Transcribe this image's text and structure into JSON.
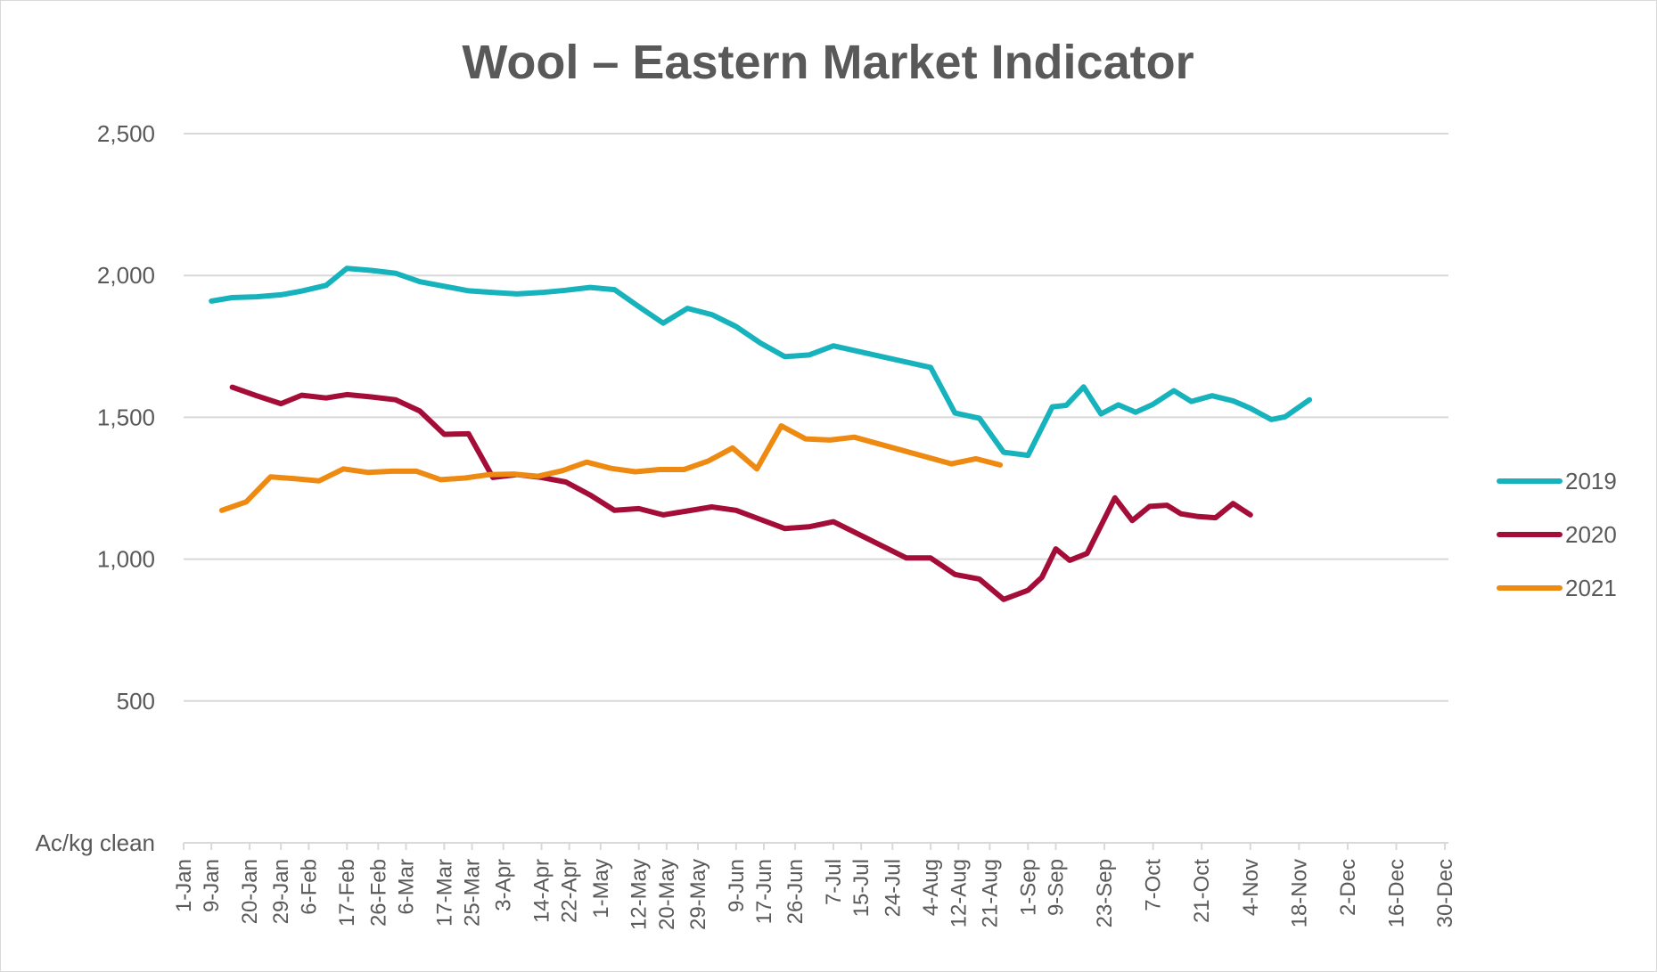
{
  "chart_data": {
    "type": "line",
    "title": "Wool – Eastern Market Indicator",
    "ylabel": "Ac/kg clean",
    "xlabel": "",
    "ylim": [
      0,
      2500
    ],
    "yticks": [
      {
        "value": 500,
        "label": "500"
      },
      {
        "value": 1000,
        "label": "1,000"
      },
      {
        "value": 1500,
        "label": "1,500"
      },
      {
        "value": 2000,
        "label": "2,000"
      },
      {
        "value": 2500,
        "label": "2,500"
      }
    ],
    "xlim": [
      1,
      365
    ],
    "xticks": [
      {
        "day": 1,
        "label": "1-Jan"
      },
      {
        "day": 9,
        "label": "9-Jan"
      },
      {
        "day": 20,
        "label": "20-Jan"
      },
      {
        "day": 29,
        "label": "29-Jan"
      },
      {
        "day": 37,
        "label": "6-Feb"
      },
      {
        "day": 48,
        "label": "17-Feb"
      },
      {
        "day": 57,
        "label": "26-Feb"
      },
      {
        "day": 65,
        "label": "6-Mar"
      },
      {
        "day": 76,
        "label": "17-Mar"
      },
      {
        "day": 84,
        "label": "25-Mar"
      },
      {
        "day": 93,
        "label": "3-Apr"
      },
      {
        "day": 104,
        "label": "14-Apr"
      },
      {
        "day": 112,
        "label": "22-Apr"
      },
      {
        "day": 121,
        "label": "1-May"
      },
      {
        "day": 132,
        "label": "12-May"
      },
      {
        "day": 140,
        "label": "20-May"
      },
      {
        "day": 149,
        "label": "29-May"
      },
      {
        "day": 160,
        "label": "9-Jun"
      },
      {
        "day": 168,
        "label": "17-Jun"
      },
      {
        "day": 177,
        "label": "26-Jun"
      },
      {
        "day": 188,
        "label": "7-Jul"
      },
      {
        "day": 196,
        "label": "15-Jul"
      },
      {
        "day": 205,
        "label": "24-Jul"
      },
      {
        "day": 216,
        "label": "4-Aug"
      },
      {
        "day": 224,
        "label": "12-Aug"
      },
      {
        "day": 233,
        "label": "21-Aug"
      },
      {
        "day": 244,
        "label": "1-Sep"
      },
      {
        "day": 252,
        "label": "9-Sep"
      },
      {
        "day": 266,
        "label": "23-Sep"
      },
      {
        "day": 280,
        "label": "7-Oct"
      },
      {
        "day": 294,
        "label": "21-Oct"
      },
      {
        "day": 308,
        "label": "4-Nov"
      },
      {
        "day": 322,
        "label": "18-Nov"
      },
      {
        "day": 336,
        "label": "2-Dec"
      },
      {
        "day": 350,
        "label": "16-Dec"
      },
      {
        "day": 364,
        "label": "30-Dec"
      }
    ],
    "grid": true,
    "legend": "right",
    "series": [
      {
        "name": "2019",
        "color": "#17b3bd",
        "points": [
          [
            9,
            1910
          ],
          [
            15,
            1922
          ],
          [
            22,
            1925
          ],
          [
            29,
            1932
          ],
          [
            35,
            1945
          ],
          [
            42,
            1965
          ],
          [
            48,
            2025
          ],
          [
            55,
            2018
          ],
          [
            62,
            2008
          ],
          [
            69,
            1978
          ],
          [
            76,
            1962
          ],
          [
            83,
            1946
          ],
          [
            90,
            1940
          ],
          [
            97,
            1935
          ],
          [
            104,
            1940
          ],
          [
            111,
            1948
          ],
          [
            118,
            1958
          ],
          [
            125,
            1950
          ],
          [
            132,
            1890
          ],
          [
            139,
            1832
          ],
          [
            146,
            1884
          ],
          [
            153,
            1862
          ],
          [
            160,
            1820
          ],
          [
            167,
            1762
          ],
          [
            174,
            1714
          ],
          [
            181,
            1720
          ],
          [
            188,
            1752
          ],
          [
            216,
            1676
          ],
          [
            223,
            1515
          ],
          [
            230,
            1497
          ],
          [
            237,
            1377
          ],
          [
            244,
            1366
          ],
          [
            251,
            1537
          ],
          [
            255,
            1542
          ],
          [
            260,
            1607
          ],
          [
            265,
            1512
          ],
          [
            270,
            1544
          ],
          [
            275,
            1518
          ],
          [
            280,
            1546
          ],
          [
            286,
            1594
          ],
          [
            291,
            1556
          ],
          [
            297,
            1576
          ],
          [
            303,
            1558
          ],
          [
            308,
            1532
          ],
          [
            314,
            1492
          ],
          [
            318,
            1502
          ],
          [
            325,
            1562
          ]
        ]
      },
      {
        "name": "2020",
        "color": "#a50d39",
        "points": [
          [
            15,
            1606
          ],
          [
            22,
            1576
          ],
          [
            29,
            1548
          ],
          [
            35,
            1578
          ],
          [
            42,
            1568
          ],
          [
            48,
            1580
          ],
          [
            55,
            1572
          ],
          [
            62,
            1562
          ],
          [
            69,
            1522
          ],
          [
            76,
            1440
          ],
          [
            83,
            1442
          ],
          [
            90,
            1288
          ],
          [
            97,
            1298
          ],
          [
            104,
            1288
          ],
          [
            111,
            1272
          ],
          [
            118,
            1226
          ],
          [
            125,
            1172
          ],
          [
            132,
            1178
          ],
          [
            139,
            1156
          ],
          [
            146,
            1170
          ],
          [
            153,
            1184
          ],
          [
            160,
            1172
          ],
          [
            167,
            1140
          ],
          [
            174,
            1108
          ],
          [
            181,
            1114
          ],
          [
            188,
            1132
          ],
          [
            209,
            1004
          ],
          [
            216,
            1004
          ],
          [
            223,
            946
          ],
          [
            230,
            930
          ],
          [
            237,
            858
          ],
          [
            244,
            890
          ],
          [
            248,
            936
          ],
          [
            252,
            1036
          ],
          [
            256,
            996
          ],
          [
            261,
            1020
          ],
          [
            269,
            1216
          ],
          [
            274,
            1136
          ],
          [
            279,
            1186
          ],
          [
            284,
            1190
          ],
          [
            288,
            1160
          ],
          [
            293,
            1150
          ],
          [
            298,
            1146
          ],
          [
            303,
            1196
          ],
          [
            308,
            1156
          ]
        ]
      },
      {
        "name": "2021",
        "color": "#ee8a11",
        "points": [
          [
            12,
            1172
          ],
          [
            19,
            1202
          ],
          [
            26,
            1290
          ],
          [
            33,
            1284
          ],
          [
            40,
            1276
          ],
          [
            47,
            1318
          ],
          [
            54,
            1306
          ],
          [
            61,
            1310
          ],
          [
            68,
            1310
          ],
          [
            75,
            1280
          ],
          [
            82,
            1286
          ],
          [
            89,
            1298
          ],
          [
            96,
            1300
          ],
          [
            103,
            1292
          ],
          [
            110,
            1312
          ],
          [
            117,
            1342
          ],
          [
            124,
            1320
          ],
          [
            131,
            1308
          ],
          [
            138,
            1316
          ],
          [
            145,
            1316
          ],
          [
            152,
            1346
          ],
          [
            159,
            1392
          ],
          [
            166,
            1318
          ],
          [
            173,
            1470
          ],
          [
            180,
            1424
          ],
          [
            187,
            1420
          ],
          [
            194,
            1430
          ],
          [
            222,
            1336
          ],
          [
            229,
            1354
          ],
          [
            236,
            1332
          ]
        ]
      }
    ]
  }
}
